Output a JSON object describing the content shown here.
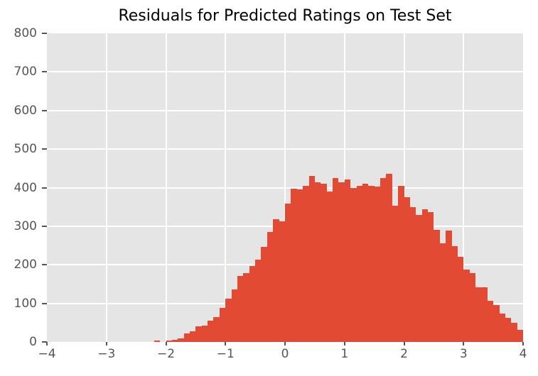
{
  "chart_data": {
    "type": "histogram",
    "title": "Residuals for Predicted Ratings on Test Set",
    "xlabel": "",
    "ylabel": "",
    "style": "ggplot",
    "grid": true,
    "legend": false,
    "xlim": [
      -4,
      4
    ],
    "ylim": [
      0,
      800
    ],
    "xticks": [
      -4,
      -3,
      -2,
      -1,
      0,
      1,
      2,
      3,
      4
    ],
    "xtick_labels": [
      "−4",
      "−3",
      "−2",
      "−1",
      "0",
      "1",
      "2",
      "3",
      "4"
    ],
    "yticks": [
      0,
      100,
      200,
      300,
      400,
      500,
      600,
      700,
      800
    ],
    "ytick_labels": [
      "0",
      "100",
      "200",
      "300",
      "400",
      "500",
      "600",
      "700",
      "800"
    ],
    "bin_start": -2.2,
    "bin_width": 0.1,
    "counts": [
      4,
      0,
      3,
      5,
      10,
      23,
      27,
      40,
      42,
      56,
      64,
      88,
      113,
      136,
      172,
      178,
      196,
      214,
      247,
      286,
      319,
      313,
      358,
      398,
      396,
      405,
      430,
      413,
      410,
      390,
      425,
      414,
      421,
      399,
      405,
      411,
      405,
      403,
      425,
      436,
      354,
      405,
      376,
      350,
      329,
      344,
      336,
      290,
      255,
      289,
      249,
      220,
      188,
      178,
      142,
      142,
      106,
      96,
      73,
      62,
      50,
      32
    ],
    "colors": {
      "bar": "#e24a33",
      "plot_background": "#e5e5e5",
      "figure_background": "#ffffff",
      "gridline": "#ffffff",
      "tick_label": "#555555",
      "title": "#000000"
    }
  }
}
